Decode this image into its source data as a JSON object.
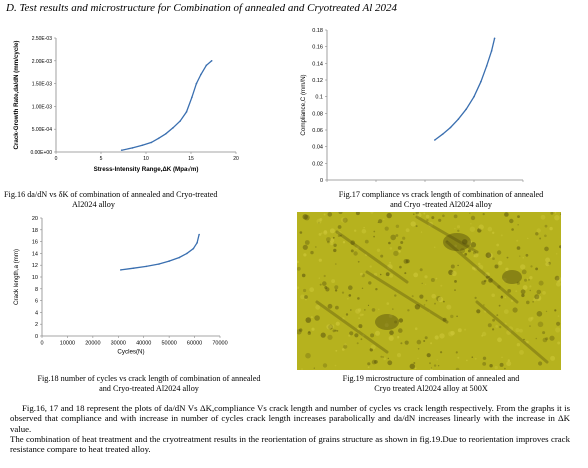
{
  "section_heading": "D. Test results and microstructure for Combination of annealed and Cryotreated Al 2024",
  "captions": {
    "fig16_line1": "Fig.16 da/dN vs δK of combination of annealed and Cryo-treated",
    "fig16_line2": "Al2024 alloy",
    "fig17_line1": "Fig.17 compliance vs crack length of combination of annealed",
    "fig17_line2": "and Cryo -treated Al2024 alloy",
    "fig18_line1": "Fig.18 number of cycles vs crack length of combination of annealed",
    "fig18_line2": "and Cryo-treated Al2024 alloy",
    "fig19_line1": "Fig.19 microstructure of combination of annealed and",
    "fig19_line2": "Cryo treated Al2024 alloy at 500X"
  },
  "paragraph1": "Fig.16, 17 and 18 represent the plots of da/dN Vs ΔK,compliance Vs crack length and number of cycles vs crack length respectively. From the graphs it is observed that compliance and with increase in number of cycles crack length increases parabolically and da/dN increases linearly with the increase in ΔK value.",
  "paragraph2": "The combination of heat treatment and the cryotreatment results in the reorientation of grains structure as shown in fig.19.Due to reorientation improves crack resistance compare to heat treated alloy.",
  "chart_data": [
    {
      "type": "line",
      "xlabel": "Stress-Intensity Range,ΔK (Mpa√m)",
      "ylabel": "Crack-Growth Rate,da/dN (mm/cycle)",
      "xlim": [
        0,
        20
      ],
      "ylim": [
        0,
        0.0025
      ],
      "x_ticks": [
        "0",
        "5",
        "10",
        "15",
        "20"
      ],
      "y_ticks": [
        "0.00E+00",
        "5.00E-04",
        "1.00E-03",
        "1.50E-03",
        "2.00E-03",
        "2.50E-03"
      ],
      "x": [
        7.3,
        8.5,
        9.6,
        10.6,
        11.4,
        12.2,
        13.0,
        13.8,
        14.5,
        15.1,
        15.6,
        16.1,
        16.7,
        17.3
      ],
      "y": [
        4e-05,
        9e-05,
        0.00015,
        0.00021,
        0.0003,
        0.0004,
        0.00053,
        0.00068,
        0.00088,
        0.0012,
        0.0015,
        0.0017,
        0.0019,
        0.002
      ]
    },
    {
      "type": "line",
      "xlabel": "Crack Length,a (mm)",
      "ylabel": "Compliance,C (mm/N)",
      "xlim": [
        0,
        20
      ],
      "ylim": [
        0,
        0.18
      ],
      "x_ticks": [
        "0",
        "5",
        "10",
        "15",
        "20"
      ],
      "y_ticks": [
        "0",
        "0.02",
        "0.04",
        "0.06",
        "0.08",
        "0.1",
        "0.12",
        "0.14",
        "0.16",
        "0.18"
      ],
      "x": [
        11.0,
        11.8,
        12.6,
        13.4,
        14.2,
        15.0,
        15.7,
        16.3,
        16.8,
        17.1
      ],
      "y": [
        0.048,
        0.055,
        0.063,
        0.073,
        0.085,
        0.1,
        0.118,
        0.137,
        0.155,
        0.17
      ]
    },
    {
      "type": "line",
      "xlabel": "Cycles(N)",
      "ylabel": "Crack length,a (mm)",
      "xlim": [
        0,
        70000
      ],
      "ylim": [
        0,
        20
      ],
      "x_ticks": [
        "0",
        "10000",
        "20000",
        "30000",
        "40000",
        "50000",
        "60000",
        "70000"
      ],
      "y_ticks": [
        "0",
        "2",
        "4",
        "6",
        "8",
        "10",
        "12",
        "14",
        "16",
        "18",
        "20"
      ],
      "x": [
        31000,
        36000,
        41000,
        46000,
        50000,
        54000,
        57000,
        59500,
        61000,
        61800
      ],
      "y": [
        11.2,
        11.5,
        11.8,
        12.2,
        12.7,
        13.3,
        14.0,
        14.8,
        15.8,
        17.2
      ]
    }
  ],
  "micrograph": {
    "base_color": "#b6b21e",
    "dark_color": "#504a0c",
    "light_color": "#cfc93a"
  }
}
